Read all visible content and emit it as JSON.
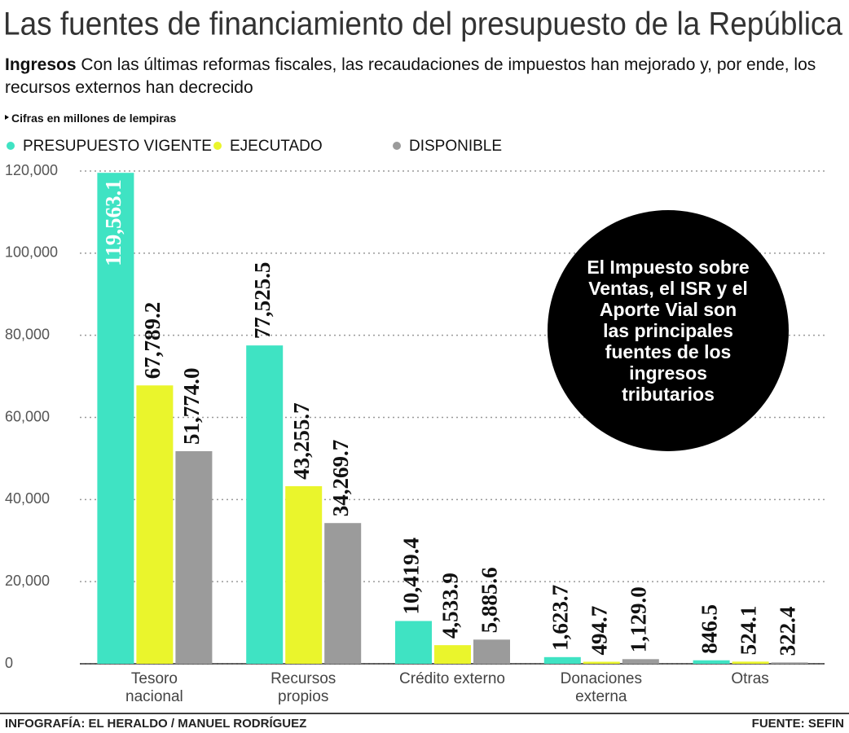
{
  "chart_data": {
    "type": "bar",
    "title": "Las fuentes de financiamiento del presupuesto de la República",
    "subtitle_lead": "Ingresos",
    "subtitle": "Con las últimas reformas fiscales, las recaudaciones de impuestos han mejorado y, por ende, los recursos externos han decrecido",
    "note": "Cifras en millones de lempiras",
    "categories": [
      "Tesoro nacional",
      "Recursos propios",
      "Crédito externo",
      "Donaciones externa",
      "Otras"
    ],
    "series": [
      {
        "name": "PRESUPUESTO VIGENTE",
        "color": "#3fe3c3",
        "values": [
          119563.1,
          77525.5,
          10419.4,
          1623.7,
          846.5
        ],
        "value_labels": [
          "119,563.1",
          "77,525.5",
          "10,419.4",
          "1,623.7",
          "846.5"
        ]
      },
      {
        "name": "EJECUTADO",
        "color": "#eaf52c",
        "values": [
          67789.2,
          43255.7,
          4533.9,
          494.7,
          524.1
        ],
        "value_labels": [
          "67,789.2",
          "43,255.7",
          "4,533.9",
          "494.7",
          "524.1"
        ]
      },
      {
        "name": "DISPONIBLE",
        "color": "#9b9b9b",
        "values": [
          51774.0,
          34269.7,
          5885.6,
          1129.0,
          322.4
        ],
        "value_labels": [
          "51,774.0",
          "34,269.7",
          "5,885.6",
          "1,129.0",
          "322.4"
        ]
      }
    ],
    "ylim": [
      0,
      120000
    ],
    "yticks": [
      0,
      {
        "value": 20000,
        "label": "20,000"
      },
      {
        "value": 40000,
        "label": "40,000"
      },
      {
        "value": 60000,
        "label": "60,000"
      },
      {
        "value": 80000,
        "label": "80,000"
      },
      {
        "value": 100000,
        "label": "100,000"
      },
      {
        "value": 120000,
        "label": "120,000"
      }
    ],
    "grid": true,
    "annotation": "El Impuesto sobre Ventas, el ISR y el Aporte Vial son las principales fuentes de los ingresos tributarios",
    "credit": "INFOGRAFÍA: EL HERALDO / MANUEL RODRÍGUEZ",
    "source": "FUENTE: SEFIN"
  }
}
